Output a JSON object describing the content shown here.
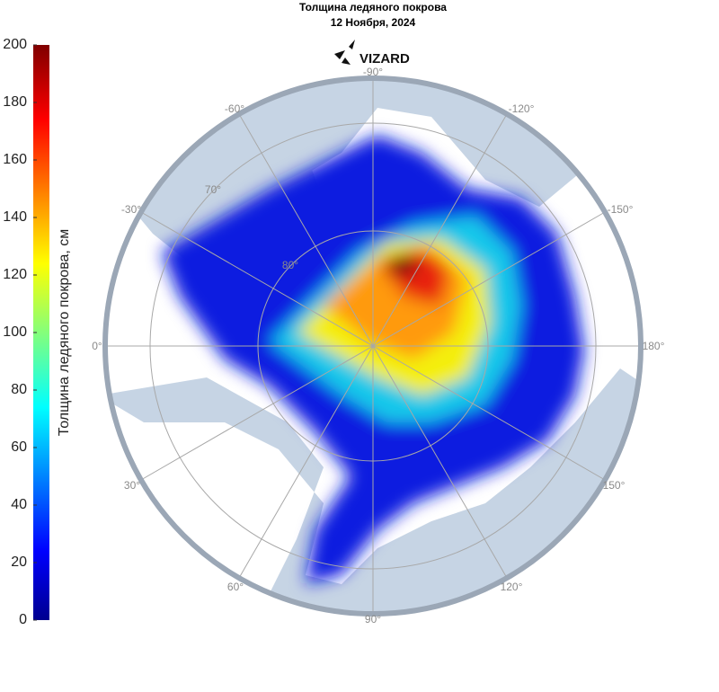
{
  "header": {
    "title": "Толщина ледяного покрова",
    "date": "12 Ноября, 2024",
    "logo": "VIZARD"
  },
  "colorbar": {
    "label": "Толщина ледяного покрова, см",
    "range": [
      0,
      200
    ],
    "ticks": [
      0,
      20,
      40,
      60,
      80,
      100,
      120,
      140,
      160,
      180,
      200
    ]
  },
  "map": {
    "longitude_labels": [
      "-90°",
      "-120°",
      "-150°",
      "180°",
      "150°",
      "120°",
      "90°",
      "60°",
      "30°",
      "0°",
      "-30°",
      "-60°"
    ],
    "latitude_labels": [
      "70°",
      "80°"
    ]
  }
}
